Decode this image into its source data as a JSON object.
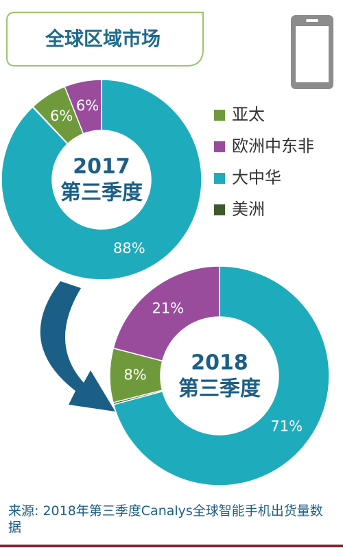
{
  "header": {
    "title": "全球区域市场"
  },
  "chart_data": [
    {
      "type": "pie",
      "center_text": "2017",
      "center_subtext": "第三季度",
      "categories": [
        "亚太",
        "欧洲中东非",
        "大中华",
        "美洲"
      ],
      "values": [
        6,
        6,
        88,
        0.1
      ],
      "value_labels": [
        "6%",
        "6%",
        "88%",
        null
      ],
      "colors": [
        "#6f9a3c",
        "#9a4c9c",
        "#1eacbd",
        "#3e5a2a"
      ]
    },
    {
      "type": "pie",
      "center_text": "2018",
      "center_subtext": "第三季度",
      "categories": [
        "亚太",
        "欧洲中东非",
        "大中华",
        "美洲"
      ],
      "values": [
        8,
        21,
        71,
        0.3
      ],
      "value_labels": [
        "8%",
        "21%",
        "71%",
        null
      ],
      "colors": [
        "#6f9a3c",
        "#9a4c9c",
        "#1eacbd",
        "#3e5a2a"
      ]
    }
  ],
  "source": "来源: 2018年第三季度Canalys全球智能手机出货量数据"
}
